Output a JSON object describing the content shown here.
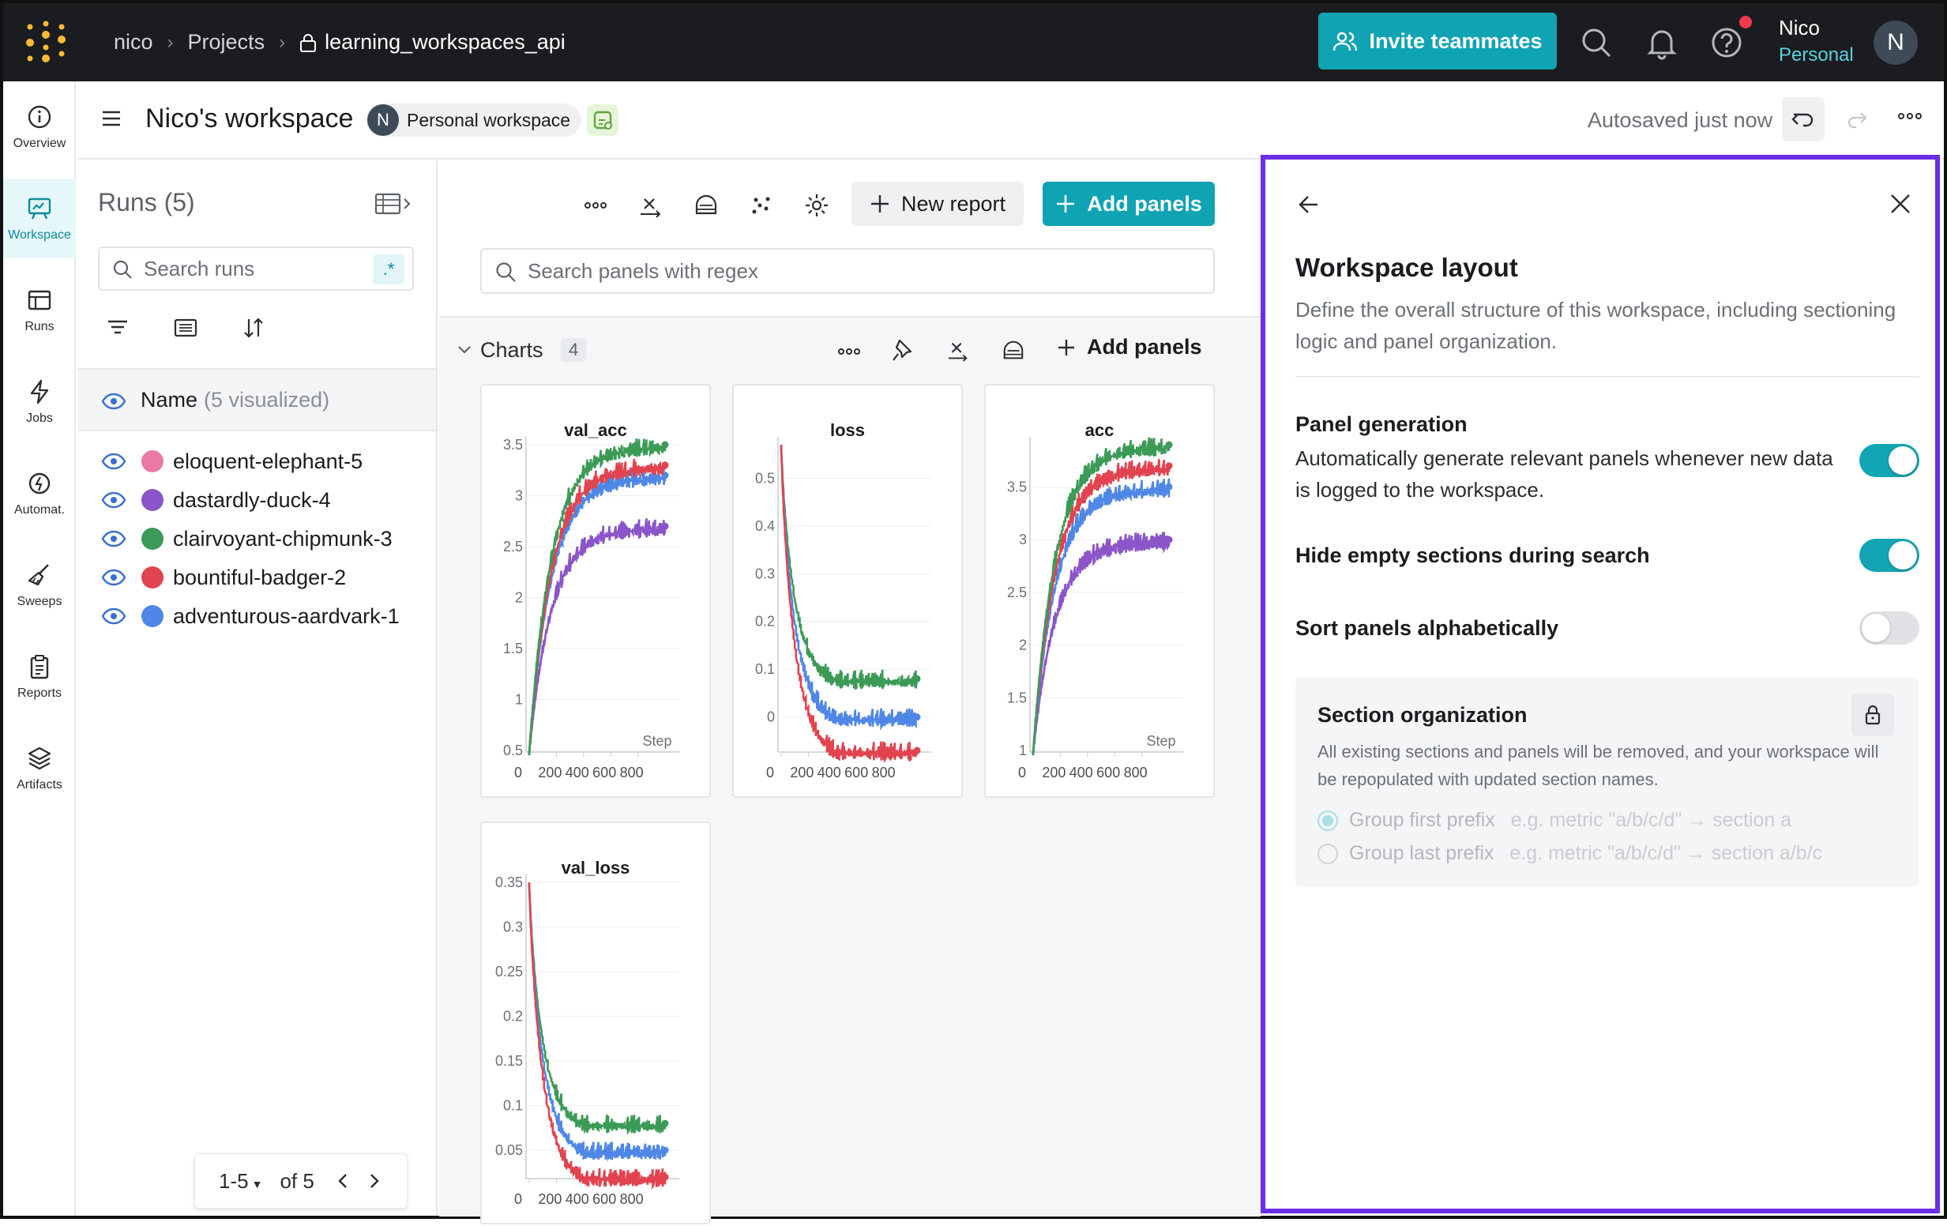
{
  "topbar": {
    "breadcrumb": {
      "user": "nico",
      "projects": "Projects",
      "project": "learning_workspaces_api"
    },
    "invite_label": "Invite teammates",
    "user_name": "Nico",
    "user_plan": "Personal",
    "avatar_letter": "N",
    "accent": "#10a3b3"
  },
  "rail": {
    "items": [
      {
        "label": "Overview",
        "icon": "info-icon"
      },
      {
        "label": "Workspace",
        "icon": "workspace-icon"
      },
      {
        "label": "Runs",
        "icon": "table-icon"
      },
      {
        "label": "Jobs",
        "icon": "bolt-icon"
      },
      {
        "label": "Automat.",
        "icon": "automation-icon"
      },
      {
        "label": "Sweeps",
        "icon": "broom-icon"
      },
      {
        "label": "Reports",
        "icon": "clipboard-icon"
      },
      {
        "label": "Artifacts",
        "icon": "layers-icon"
      }
    ]
  },
  "header": {
    "title": "Nico's workspace",
    "pill_letter": "N",
    "pill_label": "Personal workspace",
    "autosave": "Autosaved just now"
  },
  "runs": {
    "title": "Runs (5)",
    "search_placeholder": "Search runs",
    "regex_label": ".*",
    "name_header": "Name",
    "visualized": "(5 visualized)",
    "items": [
      {
        "name": "eloquent-elephant-5",
        "color": "#e97aa3"
      },
      {
        "name": "dastardly-duck-4",
        "color": "#8b55c9"
      },
      {
        "name": "clairvoyant-chipmunk-3",
        "color": "#3c9a57"
      },
      {
        "name": "bountiful-badger-2",
        "color": "#e1434f"
      },
      {
        "name": "adventurous-aardvark-1",
        "color": "#4f87e6"
      }
    ],
    "pager": {
      "range": "1-5",
      "of": "of 5"
    }
  },
  "center": {
    "new_report": "New report",
    "add_panels": "Add panels",
    "search_placeholder": "Search panels with regex",
    "section": {
      "title": "Charts",
      "count": "4",
      "add_panels": "Add panels"
    }
  },
  "chart_data": [
    {
      "type": "line",
      "title": "val_acc",
      "xlabel": "Step",
      "x_ticks": [
        "0",
        "200",
        "400",
        "600",
        "800"
      ],
      "y_ticks": [
        "0.5",
        "1",
        "1.5",
        "2",
        "2.5",
        "3",
        "3.5"
      ],
      "ylim": [
        0.5,
        3.5
      ],
      "xlim": [
        0,
        1000
      ],
      "shape": "rising",
      "series": [
        {
          "color": "#8b55c9",
          "start": 0.5,
          "end": 2.7
        },
        {
          "color": "#4f87e6",
          "start": 0.5,
          "end": 3.2
        },
        {
          "color": "#e1434f",
          "start": 0.5,
          "end": 3.3
        },
        {
          "color": "#3c9a57",
          "start": 0.5,
          "end": 3.5
        }
      ]
    },
    {
      "type": "line",
      "title": "loss",
      "xlabel": "",
      "x_ticks": [
        "0",
        "200",
        "400",
        "600",
        "800"
      ],
      "y_ticks": [
        "0",
        "0.1",
        "0.2",
        "0.3",
        "0.4",
        "0.5"
      ],
      "ylim": [
        -0.07,
        0.57
      ],
      "xlim": [
        0,
        1000
      ],
      "shape": "falling",
      "series": [
        {
          "color": "#3c9a57",
          "start": 0.57,
          "end": 0.08
        },
        {
          "color": "#4f87e6",
          "start": 0.57,
          "end": 0.0
        },
        {
          "color": "#e1434f",
          "start": 0.57,
          "end": -0.07
        }
      ]
    },
    {
      "type": "line",
      "title": "acc",
      "xlabel": "Step",
      "x_ticks": [
        "0",
        "200",
        "400",
        "600",
        "800"
      ],
      "y_ticks": [
        "1",
        "1.5",
        "2",
        "2.5",
        "3",
        "3.5"
      ],
      "ylim": [
        1,
        3.9
      ],
      "xlim": [
        0,
        1000
      ],
      "shape": "rising",
      "series": [
        {
          "color": "#8b55c9",
          "start": 1,
          "end": 3.0
        },
        {
          "color": "#4f87e6",
          "start": 1,
          "end": 3.5
        },
        {
          "color": "#e1434f",
          "start": 1,
          "end": 3.7
        },
        {
          "color": "#3c9a57",
          "start": 1,
          "end": 3.9
        }
      ]
    },
    {
      "type": "line",
      "title": "val_loss",
      "xlabel": "",
      "x_ticks": [
        "0",
        "200",
        "400",
        "600",
        "800"
      ],
      "y_ticks": [
        "0.05",
        "0.1",
        "0.15",
        "0.2",
        "0.25",
        "0.3",
        "0.35"
      ],
      "ylim": [
        0.02,
        0.35
      ],
      "xlim": [
        0,
        1000
      ],
      "shape": "falling",
      "series": [
        {
          "color": "#3c9a57",
          "start": 0.35,
          "end": 0.08
        },
        {
          "color": "#4f87e6",
          "start": 0.35,
          "end": 0.05
        },
        {
          "color": "#e1434f",
          "start": 0.35,
          "end": 0.02
        }
      ]
    }
  ],
  "drawer": {
    "title": "Workspace layout",
    "description": "Define the overall structure of this workspace, including sectioning logic and panel organization.",
    "panel_generation_title": "Panel generation",
    "panel_generation_desc": "Automatically generate relevant panels whenever new data is logged to the workspace.",
    "panel_generation_on": true,
    "hide_empty_title": "Hide empty sections during search",
    "hide_empty_on": true,
    "sort_alpha_title": "Sort panels alphabetically",
    "sort_alpha_on": false,
    "section_org": {
      "title": "Section organization",
      "desc": "All existing sections and panels will be removed, and your workspace will be repopulated with updated section names.",
      "opt1": "Group first prefix",
      "opt1_ex": "e.g. metric \"a/b/c/d\" → section a",
      "opt2": "Group last prefix",
      "opt2_ex": "e.g. metric \"a/b/c/d\" → section a/b/c"
    },
    "border_color": "#6a2ee8"
  }
}
